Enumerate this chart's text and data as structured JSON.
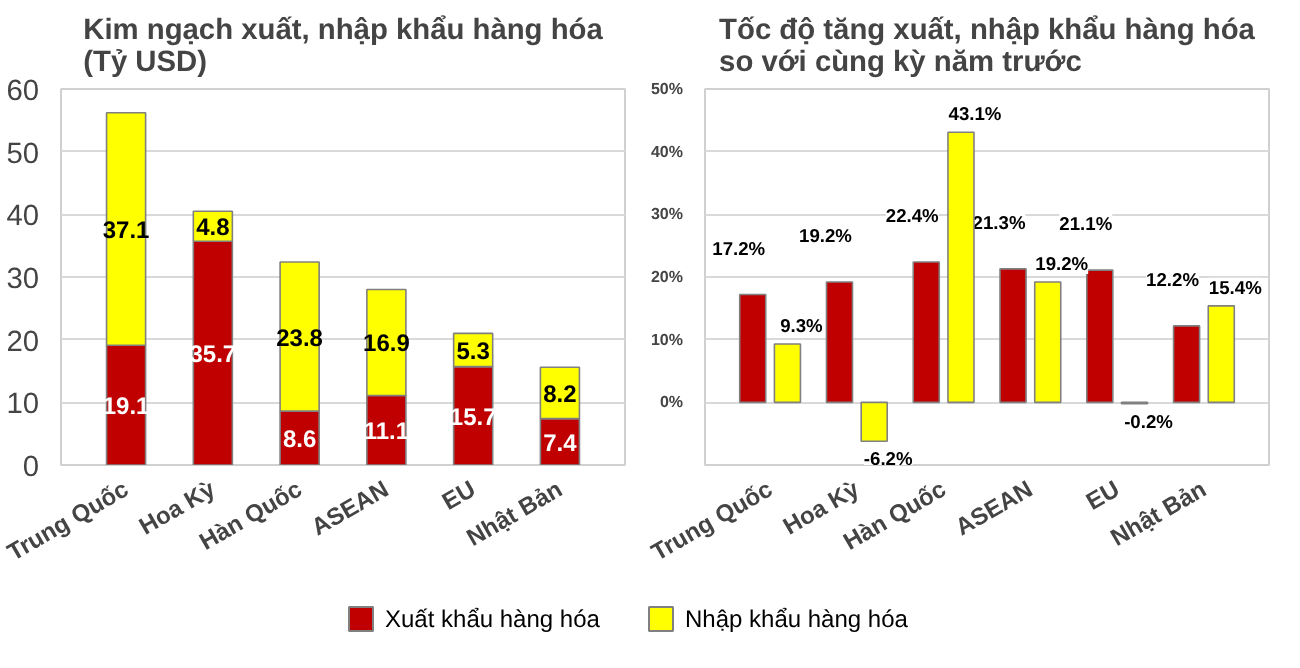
{
  "chart_data": [
    {
      "type": "bar",
      "stacked": true,
      "title": "Kim ngạch xuất, nhập khẩu hàng hóa\n(Tỷ USD)",
      "categories": [
        "Trung Quốc",
        "Hoa Kỳ",
        "Hàn Quốc",
        "ASEAN",
        "EU",
        "Nhật Bản"
      ],
      "series": [
        {
          "name": "Xuất khẩu hàng hóa",
          "color": "#c00000",
          "values": [
            19.1,
            35.7,
            8.6,
            11.1,
            15.7,
            7.4
          ]
        },
        {
          "name": "Nhập khẩu hàng hóa",
          "color": "#ffff00",
          "values": [
            37.1,
            4.8,
            23.8,
            16.9,
            5.3,
            8.2
          ]
        }
      ],
      "ylim": [
        0,
        60
      ],
      "yticks": [
        0,
        10,
        20,
        30,
        40,
        50,
        60
      ],
      "grid": "y",
      "data_labels": true,
      "legend": "bottom"
    },
    {
      "type": "bar",
      "title": "Tốc độ tăng xuất, nhập khẩu hàng hóa\nso với cùng kỳ năm trước",
      "categories": [
        "Trung Quốc",
        "Hoa Kỳ",
        "Hàn Quốc",
        "ASEAN",
        "EU",
        "Nhật Bản"
      ],
      "series": [
        {
          "name": "Xuất khẩu hàng hóa",
          "color": "#c00000",
          "values": [
            17.2,
            19.2,
            22.4,
            21.3,
            21.1,
            12.2
          ],
          "value_labels": [
            "17.2%",
            "19.2%",
            "22.4%",
            "21.3%",
            "21.1%",
            "12.2%"
          ]
        },
        {
          "name": "Nhập khẩu hàng hóa",
          "color": "#ffff00",
          "values": [
            9.3,
            -6.2,
            43.1,
            19.2,
            -0.2,
            15.4
          ],
          "value_labels": [
            "9.3%",
            "-6.2%",
            "43.1%",
            "19.2%",
            "-0.2%",
            "15.4%"
          ]
        }
      ],
      "ylim": [
        -10,
        50
      ],
      "yticks": [
        {
          "value": -10,
          "label": null
        },
        {
          "value": 0,
          "label": "0%"
        },
        {
          "value": 10,
          "label": "10%"
        },
        {
          "value": 20,
          "label": "20%"
        },
        {
          "value": 30,
          "label": "30%"
        },
        {
          "value": 40,
          "label": "40%"
        },
        {
          "value": 50,
          "label": "50%"
        }
      ],
      "grid": "y",
      "legend": "bottom"
    }
  ]
}
